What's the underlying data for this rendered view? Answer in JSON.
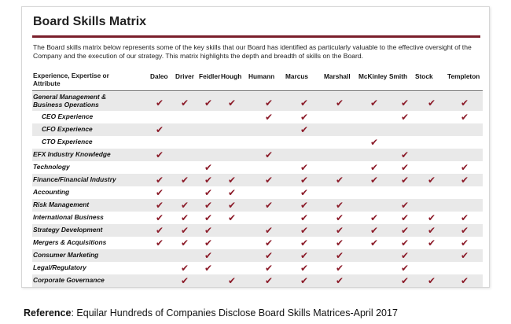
{
  "title": "Board Skills Matrix",
  "intro": "The Board skills matrix below represents some of the key skills that our Board has identified as particularly valuable to the effective oversight of the Company and the execution of our strategy. This matrix highlights the depth and breadth of skills on the Board.",
  "attribute_header": [
    "Experience, Expertise or",
    "Attribute"
  ],
  "check_color": "#8b1a28",
  "accent_color": "#7a1f2b",
  "directors": [
    "Daleo",
    "Driver",
    "Feidler",
    "Hough",
    "Humann",
    "Marcus",
    "Marshall",
    "McKinley",
    "Smith",
    "Stock",
    "Templeton"
  ],
  "rows": [
    {
      "label": [
        "General Management &",
        "Business Operations"
      ],
      "indent": false,
      "checks": [
        1,
        1,
        1,
        1,
        1,
        1,
        1,
        1,
        1,
        1,
        1
      ]
    },
    {
      "label": [
        "CEO Experience"
      ],
      "indent": true,
      "checks": [
        0,
        0,
        0,
        0,
        1,
        1,
        0,
        0,
        1,
        0,
        1
      ]
    },
    {
      "label": [
        "CFO Experience"
      ],
      "indent": true,
      "checks": [
        1,
        0,
        0,
        0,
        0,
        1,
        0,
        0,
        0,
        0,
        0
      ]
    },
    {
      "label": [
        "CTO Experience"
      ],
      "indent": true,
      "checks": [
        0,
        0,
        0,
        0,
        0,
        0,
        0,
        1,
        0,
        0,
        0
      ]
    },
    {
      "label": [
        "EFX Industry Knowledge"
      ],
      "indent": false,
      "checks": [
        1,
        0,
        0,
        0,
        1,
        0,
        0,
        0,
        1,
        0,
        0
      ]
    },
    {
      "label": [
        "Technology"
      ],
      "indent": false,
      "checks": [
        0,
        0,
        1,
        0,
        0,
        1,
        0,
        1,
        1,
        0,
        1
      ]
    },
    {
      "label": [
        "Finance/Financial Industry"
      ],
      "indent": false,
      "checks": [
        1,
        1,
        1,
        1,
        1,
        1,
        1,
        1,
        1,
        1,
        1
      ]
    },
    {
      "label": [
        "Accounting"
      ],
      "indent": false,
      "checks": [
        1,
        0,
        1,
        1,
        0,
        1,
        0,
        0,
        0,
        0,
        0
      ]
    },
    {
      "label": [
        "Risk Management"
      ],
      "indent": false,
      "checks": [
        1,
        1,
        1,
        1,
        1,
        1,
        1,
        0,
        1,
        0,
        0
      ]
    },
    {
      "label": [
        "International Business"
      ],
      "indent": false,
      "checks": [
        1,
        1,
        1,
        1,
        0,
        1,
        1,
        1,
        1,
        1,
        1
      ]
    },
    {
      "label": [
        "Strategy Development"
      ],
      "indent": false,
      "checks": [
        1,
        1,
        1,
        0,
        1,
        1,
        1,
        1,
        1,
        1,
        1
      ]
    },
    {
      "label": [
        "Mergers & Acquisitions"
      ],
      "indent": false,
      "checks": [
        1,
        1,
        1,
        0,
        1,
        1,
        1,
        1,
        1,
        1,
        1
      ]
    },
    {
      "label": [
        "Consumer Marketing"
      ],
      "indent": false,
      "checks": [
        0,
        0,
        1,
        0,
        1,
        1,
        1,
        0,
        1,
        0,
        1
      ]
    },
    {
      "label": [
        "Legal/Regulatory"
      ],
      "indent": false,
      "checks": [
        0,
        1,
        1,
        0,
        1,
        1,
        1,
        0,
        1,
        0,
        0
      ]
    },
    {
      "label": [
        "Corporate Governance"
      ],
      "indent": false,
      "checks": [
        0,
        1,
        0,
        1,
        1,
        1,
        1,
        0,
        1,
        1,
        1
      ]
    }
  ],
  "reference": {
    "label": "Reference",
    "text": ": Equilar Hundreds of Companies Disclose Board Skills Matrices-April 2017"
  }
}
